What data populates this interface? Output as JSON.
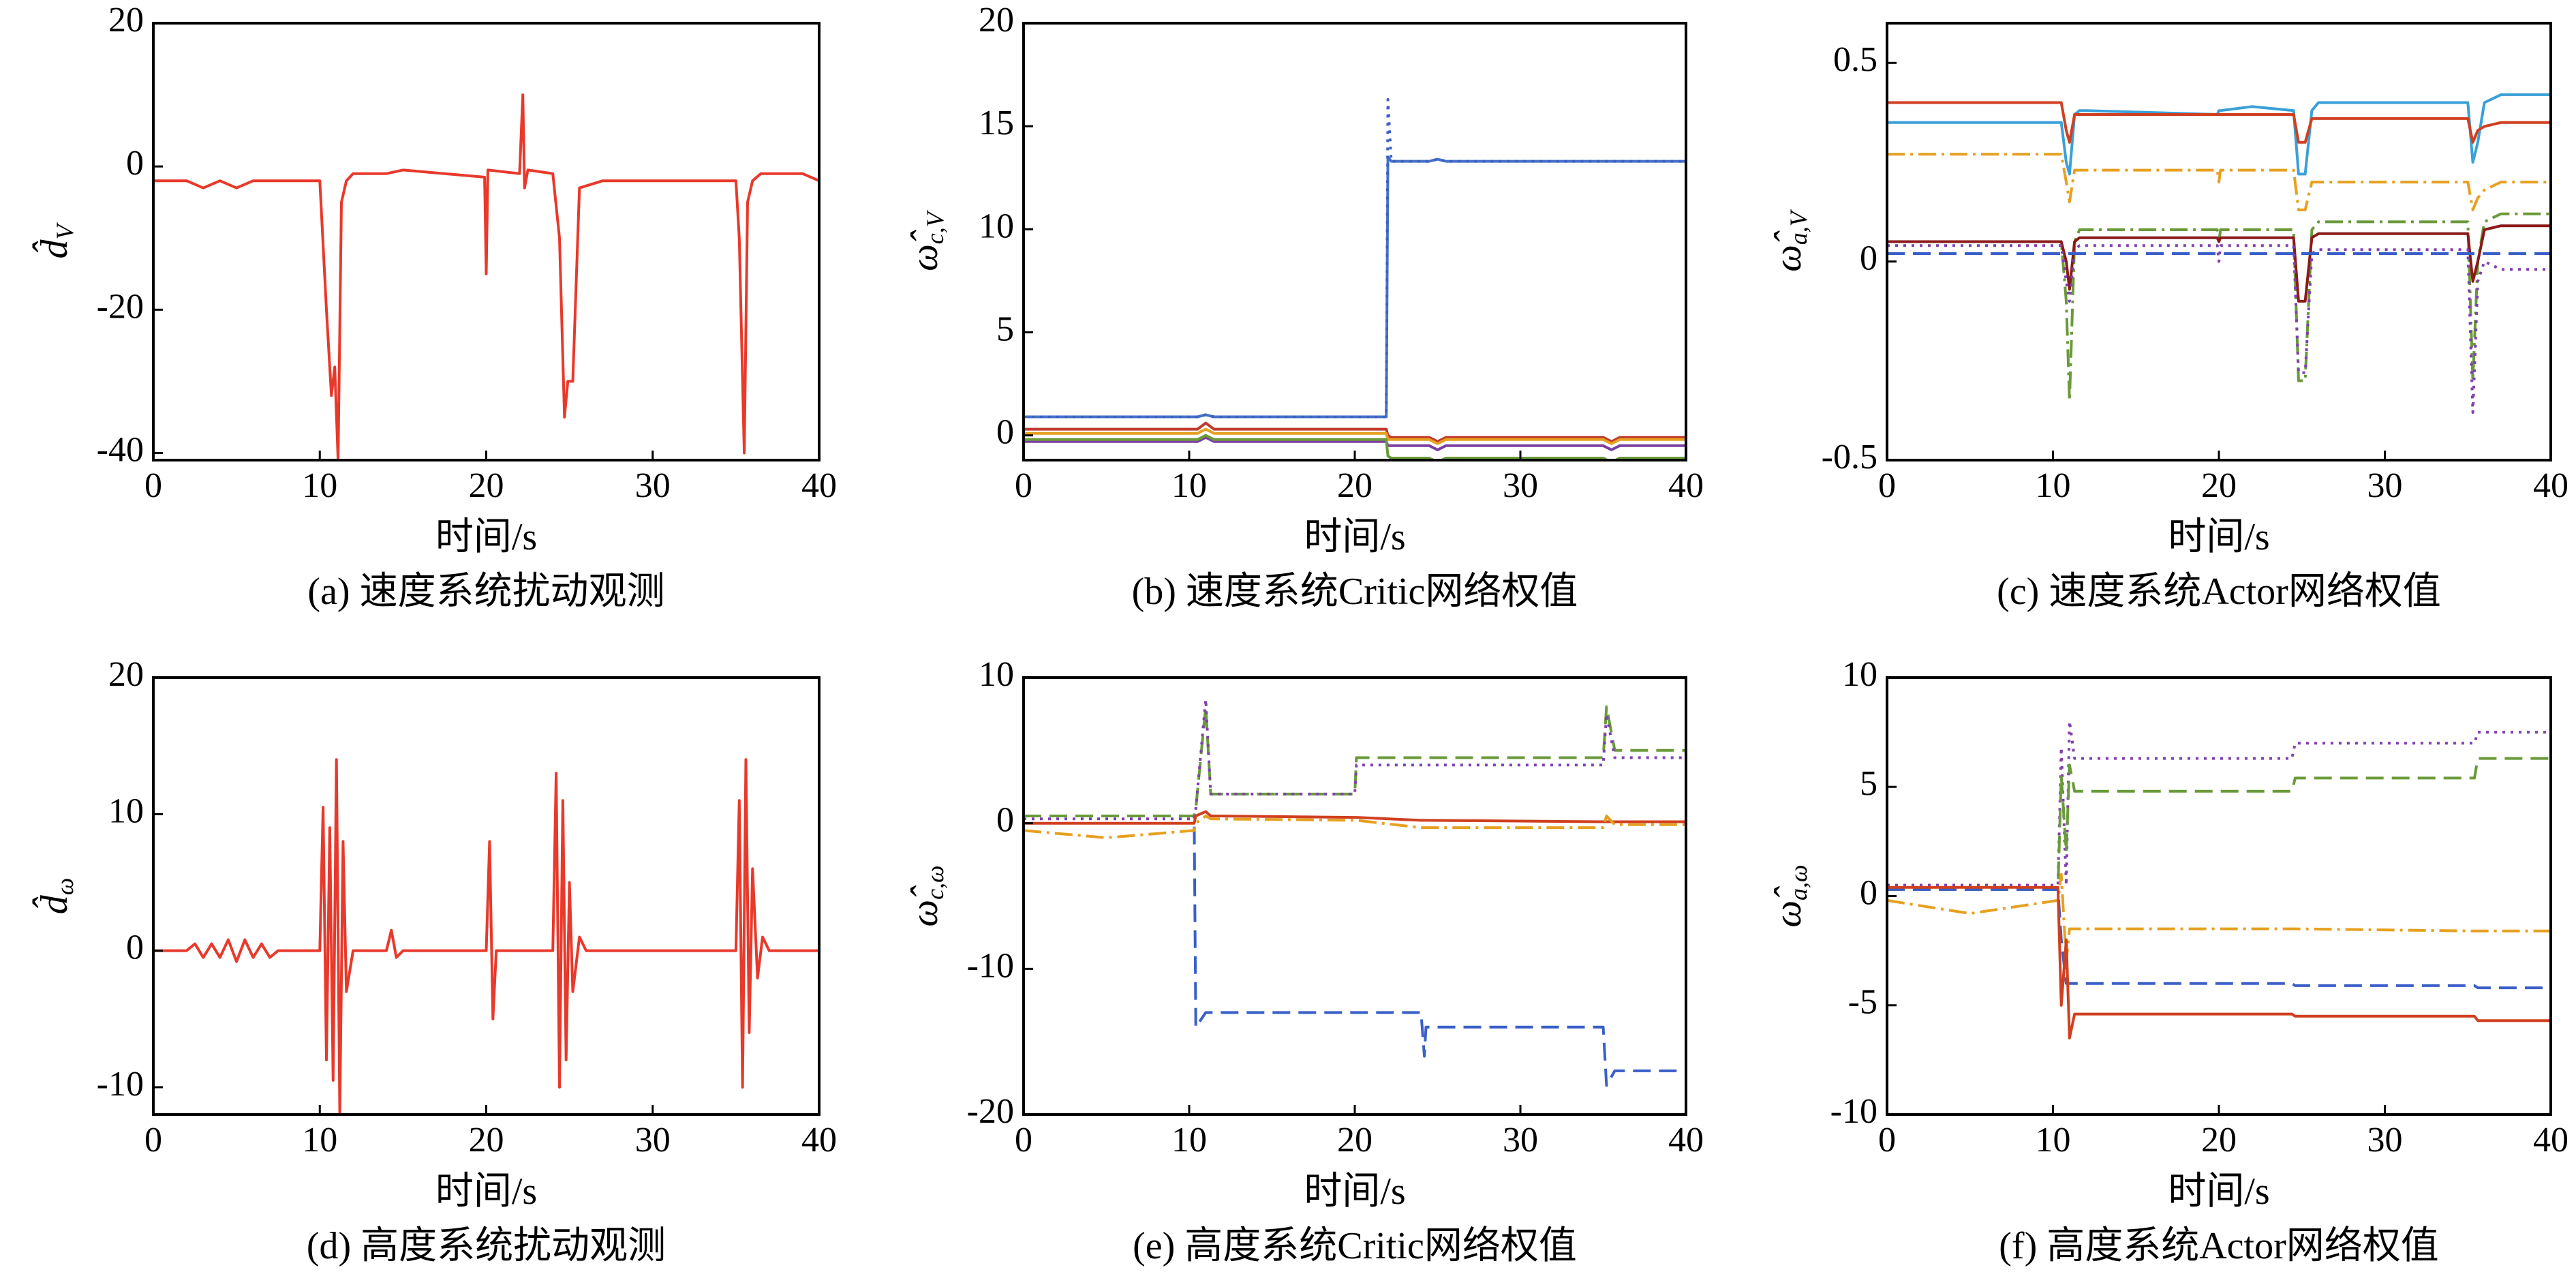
{
  "chart_data": [
    {
      "type": "line",
      "title": "(a) 速度系统扰动观测",
      "xlabel": "时间/s",
      "ylabel": "d̂",
      "ylabel_sub": "V",
      "xlim": [
        0,
        40
      ],
      "xticks": [
        0,
        10,
        20,
        30,
        40
      ],
      "ylim": [
        -41,
        20
      ],
      "yticks": [
        -40,
        -20,
        0,
        20
      ],
      "x": [
        0,
        2,
        3,
        4,
        5,
        6,
        7,
        8,
        10,
        10.4,
        10.7,
        10.9,
        11.1,
        11.3,
        11.6,
        12,
        14,
        15,
        19.9,
        20,
        20.1,
        22,
        22.2,
        22.3,
        22.5,
        24,
        24.4,
        24.7,
        24.9,
        25.2,
        25.6,
        27,
        30,
        35,
        35.2,
        35.5,
        35.7,
        36,
        36.5,
        38,
        39,
        40
      ],
      "series": [
        {
          "color": "#e8392b",
          "dash": "solid",
          "values": [
            -2,
            -2,
            -3,
            -2,
            -3,
            -2,
            -2,
            -2,
            -2,
            -20,
            -32,
            -28,
            -41,
            -5,
            -2,
            -1,
            -1,
            -0.5,
            -1.5,
            -15,
            -0.5,
            -1,
            10,
            -3,
            -0.5,
            -1,
            -10,
            -35,
            -30,
            -30,
            -3,
            -2,
            -2,
            -2,
            -10,
            -40,
            -5,
            -2,
            -1,
            -1,
            -1,
            -2
          ]
        }
      ]
    },
    {
      "type": "line",
      "title": "(b) 速度系统Critic网络权值",
      "xlabel": "时间/s",
      "ylabel": "ω̂",
      "ylabel_sub": "c,V",
      "xlim": [
        0,
        40
      ],
      "xticks": [
        0,
        10,
        20,
        30,
        40
      ],
      "ylim": [
        -1.2,
        20
      ],
      "yticks": [
        0,
        5,
        10,
        15,
        20
      ],
      "x": [
        0,
        10.5,
        11,
        11.5,
        21.9,
        22,
        22.2,
        24.5,
        25,
        25.5,
        35,
        35.5,
        36,
        40
      ],
      "series": [
        {
          "color": "#4472c4",
          "dash": "solid",
          "values": [
            0.9,
            0.9,
            1.0,
            0.9,
            0.9,
            13.5,
            13.3,
            13.3,
            13.4,
            13.3,
            13.3,
            13.3,
            13.3,
            13.3
          ]
        },
        {
          "color": "#3a5fc8",
          "dash": "dotted",
          "values": [
            0.9,
            0.9,
            1.0,
            0.9,
            0.9,
            16.3,
            13.3,
            13.3,
            13.4,
            13.3,
            13.3,
            13.3,
            13.3,
            13.3
          ]
        },
        {
          "color": "#c0392b",
          "dash": "solid",
          "values": [
            0.3,
            0.3,
            0.6,
            0.3,
            0.3,
            0.0,
            -0.1,
            -0.1,
            -0.3,
            -0.1,
            -0.1,
            -0.3,
            -0.1,
            -0.1
          ]
        },
        {
          "color": "#e6a020",
          "dash": "solid",
          "values": [
            0.1,
            0.1,
            0.3,
            0.1,
            0.1,
            -0.2,
            -0.2,
            -0.2,
            -0.4,
            -0.2,
            -0.2,
            -0.4,
            -0.2,
            -0.2
          ]
        },
        {
          "color": "#7b3fa0",
          "dash": "solid",
          "values": [
            -0.3,
            -0.3,
            -0.1,
            -0.3,
            -0.3,
            -0.5,
            -0.5,
            -0.5,
            -0.7,
            -0.5,
            -0.5,
            -0.7,
            -0.5,
            -0.5
          ]
        },
        {
          "color": "#6a9a3a",
          "dash": "solid",
          "values": [
            -0.2,
            -0.2,
            0.0,
            -0.2,
            -0.2,
            -1.0,
            -1.1,
            -1.1,
            -1.3,
            -1.1,
            -1.1,
            -1.3,
            -1.1,
            -1.1
          ]
        }
      ]
    },
    {
      "type": "line",
      "title": "(c) 速度系统Actor网络权值",
      "xlabel": "时间/s",
      "ylabel": "ω̂",
      "ylabel_sub": "a,V",
      "xlim": [
        0,
        40
      ],
      "xticks": [
        0,
        10,
        20,
        30,
        40
      ],
      "ylim": [
        -0.5,
        0.6
      ],
      "yticks": [
        -0.5,
        0,
        0.5
      ],
      "x": [
        0,
        10.5,
        10.8,
        11,
        11.3,
        11.6,
        12,
        19.9,
        20,
        20.1,
        22,
        24.5,
        24.8,
        25.2,
        25.6,
        26,
        35,
        35.3,
        35.6,
        36,
        37,
        40
      ],
      "series": [
        {
          "color": "#3aa0d8",
          "dash": "solid",
          "values": [
            0.35,
            0.35,
            0.25,
            0.22,
            0.37,
            0.38,
            0.38,
            0.37,
            0.38,
            0.38,
            0.39,
            0.38,
            0.22,
            0.22,
            0.38,
            0.4,
            0.4,
            0.25,
            0.3,
            0.4,
            0.42,
            0.42
          ]
        },
        {
          "color": "#d04020",
          "dash": "solid",
          "values": [
            0.4,
            0.4,
            0.33,
            0.3,
            0.37,
            0.37,
            0.37,
            0.37,
            0.37,
            0.37,
            0.37,
            0.37,
            0.3,
            0.3,
            0.36,
            0.36,
            0.36,
            0.3,
            0.33,
            0.34,
            0.35,
            0.35
          ]
        },
        {
          "color": "#e6a020",
          "dash": "dashdot",
          "values": [
            0.27,
            0.27,
            0.2,
            0.15,
            0.23,
            0.23,
            0.23,
            0.23,
            0.2,
            0.23,
            0.23,
            0.23,
            0.13,
            0.13,
            0.2,
            0.2,
            0.2,
            0.13,
            0.16,
            0.18,
            0.2,
            0.2
          ]
        },
        {
          "color": "#6a9a3a",
          "dash": "dashdot",
          "values": [
            0.05,
            0.05,
            -0.1,
            -0.35,
            0.05,
            0.08,
            0.08,
            0.08,
            0.05,
            0.08,
            0.08,
            0.08,
            -0.3,
            -0.3,
            0.08,
            0.1,
            0.1,
            -0.3,
            0.0,
            0.1,
            0.12,
            0.12
          ]
        },
        {
          "color": "#8b1a1a",
          "dash": "solid",
          "values": [
            0.05,
            0.05,
            0.0,
            -0.07,
            0.05,
            0.06,
            0.06,
            0.06,
            0.05,
            0.06,
            0.06,
            0.06,
            -0.1,
            -0.1,
            0.06,
            0.07,
            0.07,
            -0.05,
            0.0,
            0.08,
            0.09,
            0.09
          ]
        },
        {
          "color": "#8040b0",
          "dash": "dotted",
          "values": [
            0.04,
            0.04,
            -0.05,
            -0.1,
            0.03,
            0.04,
            0.04,
            0.04,
            0.0,
            0.04,
            0.04,
            0.04,
            -0.28,
            -0.28,
            0.02,
            0.03,
            0.03,
            -0.38,
            -0.05,
            0.0,
            -0.02,
            -0.02
          ]
        },
        {
          "color": "#3a5fc8",
          "dash": "dashed",
          "values": [
            0.02,
            0.02,
            0.02,
            0.02,
            0.02,
            0.02,
            0.02,
            0.02,
            0.02,
            0.02,
            0.02,
            0.02,
            0.02,
            0.02,
            0.02,
            0.02,
            0.02,
            0.02,
            0.02,
            0.02,
            0.02,
            0.02
          ]
        }
      ]
    },
    {
      "type": "line",
      "title": "(d) 高度系统扰动观测",
      "xlabel": "时间/s",
      "ylabel": "d̂",
      "ylabel_sub": "ω",
      "xlim": [
        0,
        40
      ],
      "xticks": [
        0,
        10,
        20,
        30,
        40
      ],
      "ylim": [
        -12,
        20
      ],
      "yticks": [
        -10,
        0,
        10,
        20
      ],
      "x": [
        0,
        2,
        2.5,
        3,
        3.5,
        4,
        4.5,
        5,
        5.5,
        6,
        6.5,
        7,
        7.5,
        10,
        10.2,
        10.4,
        10.6,
        10.8,
        11,
        11.2,
        11.4,
        11.6,
        12,
        14,
        14.3,
        14.6,
        15,
        20,
        20.2,
        20.4,
        20.6,
        24,
        24.2,
        24.4,
        24.6,
        24.8,
        25,
        25.2,
        25.6,
        26,
        27,
        35,
        35.2,
        35.4,
        35.6,
        35.8,
        36,
        36.3,
        36.6,
        37,
        38,
        40
      ],
      "series": [
        {
          "color": "#e8392b",
          "dash": "solid",
          "values": [
            0,
            0,
            0.5,
            -0.5,
            0.5,
            -0.5,
            0.8,
            -0.8,
            0.8,
            -0.5,
            0.5,
            -0.5,
            0,
            0,
            10.5,
            -8,
            9,
            -9.5,
            14,
            -12,
            8,
            -3,
            0,
            0,
            1.5,
            -0.5,
            0,
            0,
            8,
            -5,
            0,
            0,
            13,
            -10,
            11,
            -8,
            5,
            -3,
            1,
            0,
            0,
            0,
            11,
            -10,
            14,
            -6,
            6,
            -2,
            1,
            0,
            0,
            0
          ]
        }
      ]
    },
    {
      "type": "line",
      "title": "(e) 高度系统Critic网络权值",
      "xlabel": "时间/s",
      "ylabel": "ω̂",
      "ylabel_sub": "c,ω",
      "xlim": [
        0,
        40
      ],
      "xticks": [
        0,
        10,
        20,
        30,
        40
      ],
      "ylim": [
        -20,
        10
      ],
      "yticks": [
        -20,
        -10,
        0,
        10
      ],
      "x": [
        0,
        5,
        10.3,
        10.4,
        11,
        11.3,
        11.6,
        20,
        20.1,
        24,
        24.2,
        24.3,
        35,
        35.2,
        35.7,
        36,
        40
      ],
      "series": [
        {
          "color": "#3a5fc8",
          "dash": "dashed",
          "values": [
            0.5,
            0.5,
            0.5,
            -14,
            -13,
            -13,
            -13,
            -13,
            -13,
            -13,
            -16,
            -14,
            -14,
            -18,
            -17,
            -17,
            -17
          ]
        },
        {
          "color": "#6a9a3a",
          "dash": "dashed",
          "values": [
            0.5,
            0.5,
            0.5,
            1,
            8,
            2,
            2,
            2,
            4.5,
            4.5,
            4.5,
            4.5,
            4.5,
            8,
            5,
            5,
            5
          ]
        },
        {
          "color": "#8040b0",
          "dash": "dotted",
          "values": [
            0.3,
            0.3,
            0.3,
            1,
            8.5,
            2,
            2,
            2,
            4,
            4,
            4,
            4,
            4,
            7.5,
            4.5,
            4.5,
            4.5
          ]
        },
        {
          "color": "#d04020",
          "dash": "solid",
          "values": [
            0,
            0,
            0,
            0.5,
            0.8,
            0.5,
            0.5,
            0.4,
            0.4,
            0.2,
            0.2,
            0.2,
            0.1,
            0.1,
            0.1,
            0.1,
            0.1
          ]
        },
        {
          "color": "#e6a020",
          "dash": "dashdot",
          "values": [
            -0.5,
            -1,
            -0.5,
            0,
            0.5,
            0.3,
            0.3,
            0.2,
            0.2,
            -0.3,
            -0.3,
            -0.3,
            -0.3,
            0.5,
            -0.1,
            -0.1,
            -0.1
          ]
        }
      ]
    },
    {
      "type": "line",
      "title": "(f) 高度系统Actor网络权值",
      "xlabel": "时间/s",
      "ylabel": "ω̂",
      "ylabel_sub": "a,ω",
      "xlim": [
        0,
        40
      ],
      "xticks": [
        0,
        10,
        20,
        30,
        40
      ],
      "ylim": [
        -10,
        10
      ],
      "yticks": [
        -10,
        -5,
        0,
        5,
        10
      ],
      "x": [
        0,
        5,
        10.3,
        10.5,
        10.8,
        11,
        11.3,
        24.4,
        24.6,
        35.4,
        35.6,
        40
      ],
      "series": [
        {
          "color": "#8040b0",
          "dash": "dotted",
          "values": [
            0.5,
            0.5,
            0.5,
            6.8,
            0.5,
            8,
            6.3,
            6.3,
            7,
            7,
            7.5,
            7.5
          ]
        },
        {
          "color": "#6a9a3a",
          "dash": "dashed",
          "values": [
            0.3,
            0.3,
            0.3,
            5.5,
            2,
            6,
            4.8,
            4.8,
            5.4,
            5.4,
            6.3,
            6.3
          ]
        },
        {
          "color": "#e6a020",
          "dash": "dashdot",
          "values": [
            -0.2,
            -0.8,
            -0.2,
            1,
            -3,
            -1.5,
            -1.5,
            -1.5,
            -1.5,
            -1.6,
            -1.6,
            -1.6
          ]
        },
        {
          "color": "#3a5fc8",
          "dash": "dashed",
          "values": [
            0.3,
            0.3,
            0.3,
            -2,
            -4,
            -4,
            -4,
            -4,
            -4.1,
            -4.1,
            -4.2,
            -4.2
          ]
        },
        {
          "color": "#d04020",
          "dash": "solid",
          "values": [
            0.4,
            0.4,
            0.4,
            -5,
            -2,
            -6.5,
            -5.4,
            -5.4,
            -5.5,
            -5.5,
            -5.7,
            -5.7
          ]
        }
      ]
    }
  ]
}
